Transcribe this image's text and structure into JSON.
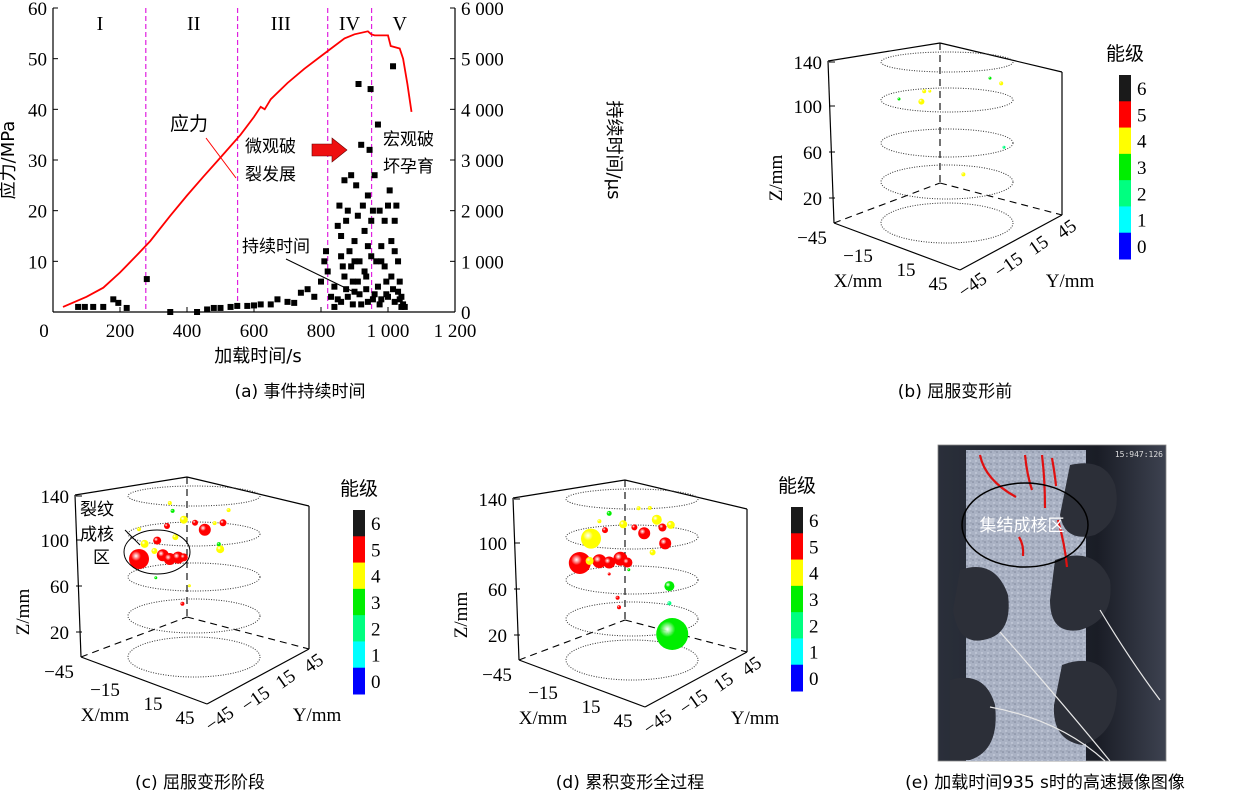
{
  "panel_a": {
    "caption": "(a)  事件持续时间",
    "annotations": {
      "stress_label": "应力",
      "duration_label": "持续时间",
      "micro_line1": "微观破",
      "micro_line2": "裂发展",
      "macro_line1": "宏观破",
      "macro_line2": "坏孕育"
    },
    "stage_labels": [
      "I",
      "II",
      "III",
      "IV",
      "V"
    ]
  },
  "panel_b": {
    "caption": "(b)  屈服变形前"
  },
  "panel_c": {
    "caption": "(c)  屈服变形阶段",
    "annotation": [
      "裂纹",
      "成核",
      "区"
    ]
  },
  "panel_d": {
    "caption": "(d)  累积变形全过程"
  },
  "panel_e": {
    "caption": "(e)  加载时间935 s时的高速摄像图像",
    "timestamp": "15:947:126",
    "annotation": "集结成核区",
    "crack_color": "#e01010"
  },
  "colorbar": {
    "title": "能级",
    "levels": [
      {
        "label": "6",
        "color": "#1a1a1a"
      },
      {
        "label": "5",
        "color": "#ff0000"
      },
      {
        "label": "4",
        "color": "#ffff00"
      },
      {
        "label": "3",
        "color": "#00ee00"
      },
      {
        "label": "2",
        "color": "#00ff80"
      },
      {
        "label": "1",
        "color": "#00ffff"
      },
      {
        "label": "0",
        "color": "#0000ff"
      }
    ]
  },
  "axes3d": {
    "z_label": "Z/mm",
    "x_label": "X/mm",
    "y_label": "Y/mm",
    "z_ticks": [
      "140",
      "100",
      "60",
      "20"
    ],
    "x_ticks": [
      "−45",
      "−15",
      "15",
      "45"
    ],
    "y_ticks": [
      "−45",
      "−15",
      "15",
      "45"
    ]
  },
  "chart_data": [
    {
      "type": "line+scatter",
      "panel": "a",
      "xlabel": "加载时间/s",
      "ylabel": "应力/MPa",
      "y2label": "持续时间/μs",
      "xlim": [
        0,
        1200
      ],
      "ylim": [
        0,
        60
      ],
      "y2lim": [
        0,
        6000
      ],
      "x_ticks": [
        "0",
        "200",
        "400",
        "600",
        "800",
        "1 000",
        "1 200"
      ],
      "y_ticks": [
        "10",
        "20",
        "30",
        "40",
        "50",
        "60"
      ],
      "y2_ticks": [
        "0",
        "1 000",
        "2 000",
        "3 000",
        "4 000",
        "5 000",
        "6 000"
      ],
      "stage_boundaries_s": [
        277,
        551,
        820,
        951
      ],
      "stress_color": "#ff0000",
      "boundary_color": "#e020e0",
      "stress": [
        [
          30,
          1
        ],
        [
          100,
          3
        ],
        [
          150,
          4.8
        ],
        [
          200,
          7.8
        ],
        [
          250,
          11.2
        ],
        [
          290,
          14
        ],
        [
          350,
          19
        ],
        [
          400,
          23
        ],
        [
          450,
          26.8
        ],
        [
          500,
          30.5
        ],
        [
          560,
          35
        ],
        [
          600,
          38.5
        ],
        [
          620,
          40.5
        ],
        [
          632,
          40
        ],
        [
          650,
          42
        ],
        [
          700,
          45.2
        ],
        [
          750,
          48
        ],
        [
          800,
          50.5
        ],
        [
          830,
          52
        ],
        [
          870,
          54
        ],
        [
          900,
          54.8
        ],
        [
          940,
          55.4
        ],
        [
          950,
          54.8
        ],
        [
          960,
          54.6
        ],
        [
          1000,
          54.6
        ],
        [
          1008,
          52.5
        ],
        [
          1035,
          52
        ],
        [
          1045,
          50
        ],
        [
          1058,
          45
        ],
        [
          1070,
          39.5
        ]
      ],
      "duration": [
        [
          75,
          100
        ],
        [
          95,
          100
        ],
        [
          120,
          100
        ],
        [
          150,
          100
        ],
        [
          180,
          250
        ],
        [
          195,
          180
        ],
        [
          220,
          80
        ],
        [
          280,
          650
        ],
        [
          350,
          0
        ],
        [
          430,
          0
        ],
        [
          460,
          50
        ],
        [
          480,
          80
        ],
        [
          500,
          80
        ],
        [
          530,
          100
        ],
        [
          550,
          120
        ],
        [
          580,
          120
        ],
        [
          600,
          130
        ],
        [
          620,
          150
        ],
        [
          650,
          150
        ],
        [
          670,
          250
        ],
        [
          700,
          200
        ],
        [
          720,
          180
        ],
        [
          740,
          380
        ],
        [
          760,
          450
        ],
        [
          780,
          300
        ],
        [
          800,
          600
        ],
        [
          810,
          1000
        ],
        [
          815,
          1200
        ],
        [
          820,
          800
        ],
        [
          830,
          300
        ],
        [
          840,
          500
        ],
        [
          850,
          1700
        ],
        [
          855,
          2100
        ],
        [
          860,
          1500
        ],
        [
          865,
          900
        ],
        [
          870,
          2600
        ],
        [
          875,
          1800
        ],
        [
          880,
          2000
        ],
        [
          885,
          1200
        ],
        [
          890,
          2700
        ],
        [
          895,
          600
        ],
        [
          900,
          1400
        ],
        [
          905,
          2500
        ],
        [
          910,
          1900
        ],
        [
          912,
          4500
        ],
        [
          915,
          1000
        ],
        [
          920,
          3300
        ],
        [
          925,
          2100
        ],
        [
          930,
          1600
        ],
        [
          935,
          700
        ],
        [
          940,
          2300
        ],
        [
          945,
          3200
        ],
        [
          948,
          4400
        ],
        [
          950,
          1800
        ],
        [
          955,
          2000
        ],
        [
          960,
          2700
        ],
        [
          965,
          1000
        ],
        [
          970,
          3700
        ],
        [
          975,
          2000
        ],
        [
          980,
          1300
        ],
        [
          990,
          1800
        ],
        [
          995,
          600
        ],
        [
          1000,
          2100
        ],
        [
          1005,
          2400
        ],
        [
          1010,
          1400
        ],
        [
          1015,
          4850
        ],
        [
          1020,
          1800
        ],
        [
          1025,
          2100
        ],
        [
          1030,
          1000
        ],
        [
          1035,
          600
        ],
        [
          1040,
          300
        ],
        [
          1045,
          150
        ],
        [
          1050,
          100
        ],
        [
          840,
          100
        ],
        [
          860,
          200
        ],
        [
          880,
          300
        ],
        [
          900,
          400
        ],
        [
          920,
          150
        ],
        [
          940,
          200
        ],
        [
          960,
          350
        ],
        [
          980,
          250
        ],
        [
          1000,
          300
        ],
        [
          1020,
          200
        ],
        [
          1040,
          100
        ],
        [
          870,
          700
        ],
        [
          890,
          900
        ],
        [
          910,
          600
        ],
        [
          930,
          800
        ],
        [
          950,
          1100
        ],
        [
          970,
          500
        ],
        [
          990,
          900
        ],
        [
          1010,
          700
        ],
        [
          1030,
          400
        ],
        [
          850,
          250
        ],
        [
          875,
          450
        ],
        [
          895,
          150
        ],
        [
          915,
          350
        ],
        [
          935,
          450
        ],
        [
          955,
          250
        ],
        [
          975,
          150
        ],
        [
          995,
          350
        ],
        [
          1015,
          450
        ],
        [
          1035,
          250
        ],
        [
          860,
          1100
        ],
        [
          900,
          1000
        ],
        [
          940,
          1300
        ],
        [
          980,
          1000
        ],
        [
          1020,
          1200
        ]
      ]
    },
    {
      "type": "scatter3d",
      "panel": "b",
      "points_fields": [
        "X_mm",
        "Y_mm",
        "Z_mm",
        "level",
        "size"
      ],
      "points": [
        [
          -19,
          0,
          94,
          4,
          3
        ],
        [
          -17,
          0,
          104,
          4,
          2
        ],
        [
          -13,
          0,
          106,
          4,
          1.5
        ],
        [
          -35,
          0,
          89,
          3,
          1.5
        ],
        [
          30,
          0,
          137,
          3,
          1.5
        ],
        [
          38,
          0,
          136,
          4,
          2
        ],
        [
          11,
          0,
          44,
          4,
          2
        ],
        [
          40,
          0,
          81,
          2,
          1.5
        ]
      ]
    },
    {
      "type": "scatter3d",
      "panel": "c",
      "points_fields": [
        "X_mm",
        "Y_mm",
        "Z_mm",
        "level",
        "size"
      ],
      "points": [
        [
          -40,
          0,
          64,
          5,
          10
        ],
        [
          -27,
          0,
          86,
          5,
          4
        ],
        [
          -23,
          0,
          75,
          5,
          6
        ],
        [
          -18,
          0,
          74,
          5,
          6
        ],
        [
          -12,
          0,
          78,
          5,
          6
        ],
        [
          -8,
          0,
          80,
          5,
          4
        ],
        [
          7,
          0,
          111,
          5,
          6
        ],
        [
          0,
          0,
          114,
          5,
          3
        ],
        [
          20,
          0,
          123,
          5,
          3.5
        ],
        [
          -20,
          0,
          102,
          5,
          3
        ],
        [
          -36,
          0,
          79,
          4,
          4
        ],
        [
          -8,
          0,
          113,
          4,
          4
        ],
        [
          18,
          0,
          99,
          4,
          4
        ],
        [
          24,
          0,
          136,
          4,
          2
        ],
        [
          -18,
          0,
          123,
          4,
          2
        ],
        [
          -16,
          0,
          117,
          3,
          2
        ],
        [
          17,
          0,
          103,
          3,
          2
        ],
        [
          -9,
          0,
          39,
          5,
          2
        ],
        [
          -14,
          0,
          95,
          4,
          3
        ],
        [
          -29,
          0,
          76,
          4,
          3
        ],
        [
          -28,
          0,
          53,
          3,
          1.5
        ],
        [
          -4,
          0,
          57,
          4,
          1.5
        ],
        [
          14,
          0,
          120,
          4,
          2
        ],
        [
          -40,
          0,
          90,
          4,
          2
        ]
      ]
    },
    {
      "type": "scatter3d",
      "panel": "d",
      "points_fields": [
        "X_mm",
        "Y_mm",
        "Z_mm",
        "level",
        "size"
      ],
      "points": [
        [
          -38,
          0,
          64,
          5,
          11
        ],
        [
          -30,
          0,
          89,
          4,
          10
        ],
        [
          -24,
          0,
          72,
          5,
          7
        ],
        [
          -17,
          0,
          74,
          5,
          6
        ],
        [
          -9,
          0,
          81,
          5,
          7
        ],
        [
          -4,
          0,
          80,
          5,
          5
        ],
        [
          8,
          0,
          111,
          5,
          6
        ],
        [
          23,
          0,
          109,
          5,
          6
        ],
        [
          21,
          0,
          122,
          5,
          4
        ],
        [
          1,
          0,
          113,
          5,
          3
        ],
        [
          -20,
          0,
          101,
          5,
          3
        ],
        [
          17,
          0,
          127,
          4,
          5
        ],
        [
          27,
          0,
          127,
          4,
          4
        ],
        [
          -7,
          0,
          112,
          4,
          4
        ],
        [
          14,
          0,
          97,
          4,
          3
        ],
        [
          -31,
          0,
          69,
          4,
          4
        ],
        [
          26,
          0,
          73,
          3,
          5
        ],
        [
          28,
          0,
          32,
          3,
          16
        ],
        [
          -17,
          0,
          117,
          3,
          2.5
        ],
        [
          26,
          0,
          58,
          2,
          2
        ],
        [
          -10,
          0,
          38,
          5,
          2
        ],
        [
          -11,
          0,
          46,
          5,
          2
        ],
        [
          -24,
          0,
          107,
          4,
          2
        ],
        [
          12,
          0,
          135,
          4,
          2
        ],
        [
          4,
          0,
          131,
          4,
          2
        ],
        [
          -17,
          0,
          64,
          5,
          1.5
        ],
        [
          -3,
          0,
          74,
          3,
          1.5
        ]
      ]
    }
  ]
}
